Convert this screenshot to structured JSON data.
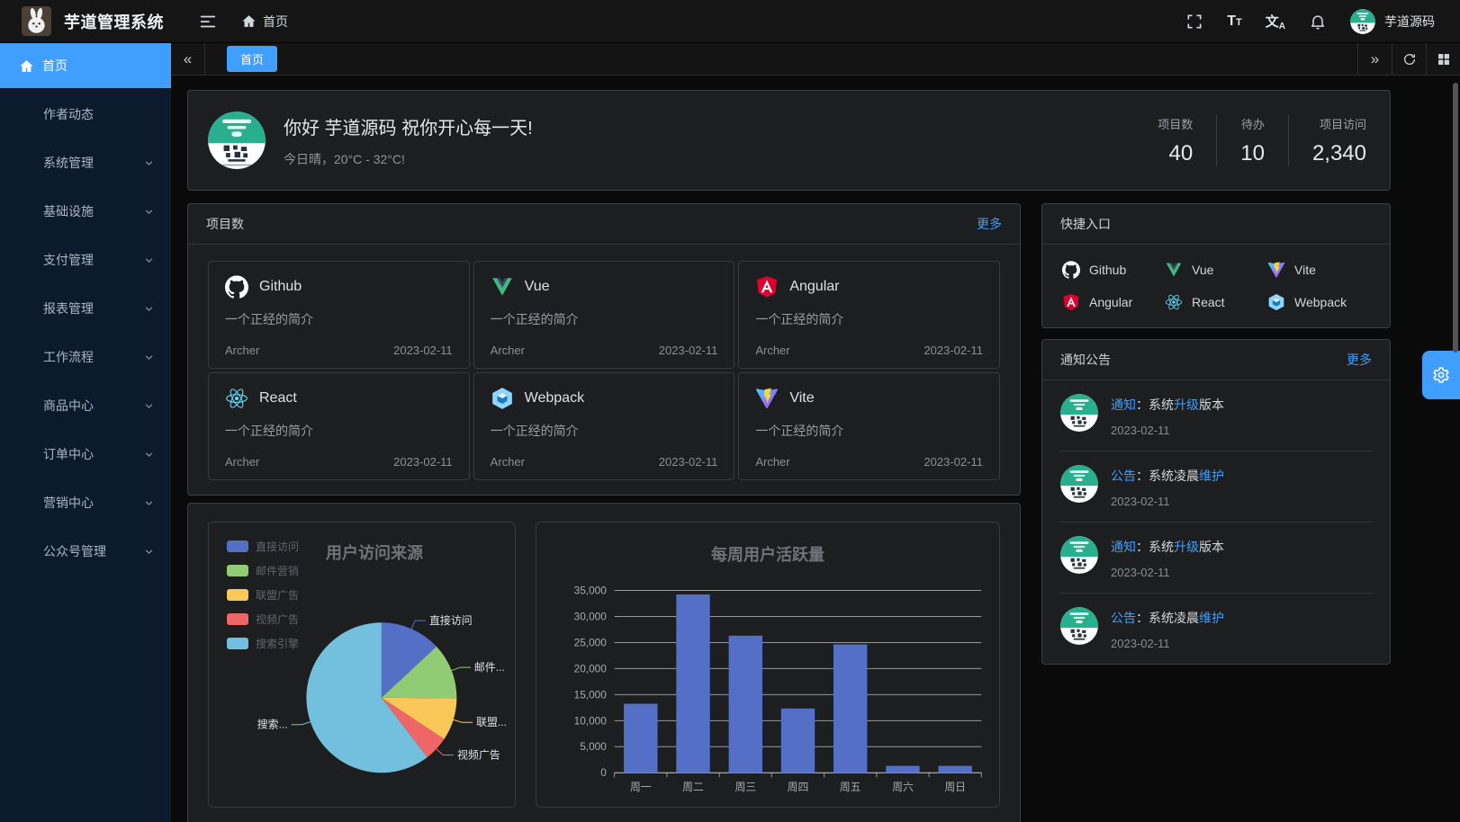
{
  "colors": {
    "accent": "#409eff"
  },
  "header": {
    "app_title": "芋道管理系统",
    "breadcrumb_home": "首页",
    "username": "芋道源码"
  },
  "sidebar": {
    "items": [
      {
        "label": "首页",
        "icon": "home-icon",
        "active": true,
        "expandable": false
      },
      {
        "label": "作者动态",
        "expandable": false
      },
      {
        "label": "系统管理",
        "expandable": true
      },
      {
        "label": "基础设施",
        "expandable": true
      },
      {
        "label": "支付管理",
        "expandable": true
      },
      {
        "label": "报表管理",
        "expandable": true
      },
      {
        "label": "工作流程",
        "expandable": true
      },
      {
        "label": "商品中心",
        "expandable": true
      },
      {
        "label": "订单中心",
        "expandable": true
      },
      {
        "label": "营销中心",
        "expandable": true
      },
      {
        "label": "公众号管理",
        "expandable": true
      }
    ]
  },
  "tabbar": {
    "active_tab": "首页"
  },
  "welcome": {
    "greeting": "你好 芋道源码 祝你开心每一天!",
    "weather": "今日晴，20°C - 32°C!",
    "stats": [
      {
        "label": "项目数",
        "value": "40"
      },
      {
        "label": "待办",
        "value": "10"
      },
      {
        "label": "项目访问",
        "value": "2,340"
      }
    ]
  },
  "projects": {
    "title": "项目数",
    "more_label": "更多",
    "items": [
      {
        "name": "Github",
        "icon": "github-icon",
        "desc": "一个正经的简介",
        "author": "Archer",
        "date": "2023-02-11"
      },
      {
        "name": "Vue",
        "icon": "vue-icon",
        "desc": "一个正经的简介",
        "author": "Archer",
        "date": "2023-02-11"
      },
      {
        "name": "Angular",
        "icon": "angular-icon",
        "desc": "一个正经的简介",
        "author": "Archer",
        "date": "2023-02-11"
      },
      {
        "name": "React",
        "icon": "react-icon",
        "desc": "一个正经的简介",
        "author": "Archer",
        "date": "2023-02-11"
      },
      {
        "name": "Webpack",
        "icon": "webpack-icon",
        "desc": "一个正经的简介",
        "author": "Archer",
        "date": "2023-02-11"
      },
      {
        "name": "Vite",
        "icon": "vite-icon",
        "desc": "一个正经的简介",
        "author": "Archer",
        "date": "2023-02-11"
      }
    ]
  },
  "shortcuts": {
    "title": "快捷入口",
    "items": [
      {
        "label": "Github",
        "icon": "github-icon"
      },
      {
        "label": "Vue",
        "icon": "vue-icon"
      },
      {
        "label": "Vite",
        "icon": "vite-icon"
      },
      {
        "label": "Angular",
        "icon": "angular-icon"
      },
      {
        "label": "React",
        "icon": "react-icon"
      },
      {
        "label": "Webpack",
        "icon": "webpack-icon"
      }
    ]
  },
  "notices": {
    "title": "通知公告",
    "more_label": "更多",
    "items": [
      {
        "parts": [
          {
            "text": "通知",
            "accent": true
          },
          {
            "text": "：系统"
          },
          {
            "text": "升级",
            "accent": true
          },
          {
            "text": "版本"
          }
        ],
        "date": "2023-02-11"
      },
      {
        "parts": [
          {
            "text": "公告",
            "accent": true
          },
          {
            "text": "：系统凌晨"
          },
          {
            "text": "维护",
            "accent": true
          }
        ],
        "date": "2023-02-11"
      },
      {
        "parts": [
          {
            "text": "通知",
            "accent": true
          },
          {
            "text": "：系统"
          },
          {
            "text": "升级",
            "accent": true
          },
          {
            "text": "版本"
          }
        ],
        "date": "2023-02-11"
      },
      {
        "parts": [
          {
            "text": "公告",
            "accent": true
          },
          {
            "text": "：系统凌晨"
          },
          {
            "text": "维护",
            "accent": true
          }
        ],
        "date": "2023-02-11"
      }
    ]
  },
  "chart_data": [
    {
      "type": "pie",
      "title": "用户访问来源",
      "labels": [
        "直接访问",
        "邮件营销",
        "联盟广告",
        "视频广告",
        "搜索引擎"
      ],
      "values": [
        335,
        310,
        234,
        135,
        1548
      ],
      "callout_labels": [
        "直接访问",
        "邮件...",
        "联盟...",
        "视频广告",
        "搜索..."
      ],
      "colors": [
        "#5470c6",
        "#91cc75",
        "#fac858",
        "#ee6666",
        "#73c0de"
      ],
      "legend_position": "left"
    },
    {
      "type": "bar",
      "title": "每周用户活跃量",
      "categories": [
        "周一",
        "周二",
        "周三",
        "周四",
        "周五",
        "周六",
        "周日"
      ],
      "values": [
        13253,
        34235,
        26321,
        12340,
        24643,
        1322,
        1324
      ],
      "ylim": [
        0,
        35000
      ],
      "ytick_step": 5000,
      "bar_color": "#5470c6",
      "grid": true
    }
  ]
}
